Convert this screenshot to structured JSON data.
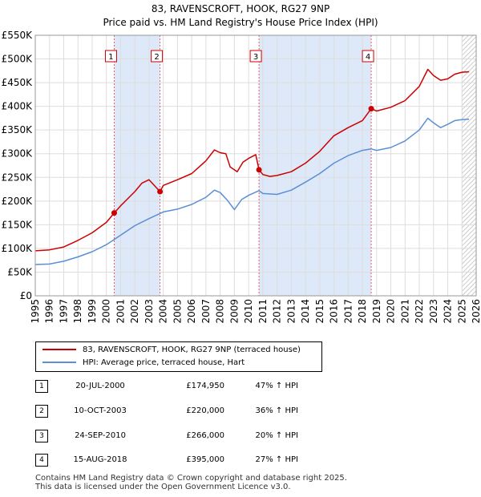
{
  "title": "83, RAVENSCROFT, HOOK, RG27 9NP",
  "subtitle": "Price paid vs. HM Land Registry's House Price Index (HPI)",
  "chart_data": {
    "type": "line",
    "title": "83, RAVENSCROFT, HOOK, RG27 9NP",
    "subtitle": "Price paid vs. HM Land Registry's House Price Index (HPI)",
    "xlabel": "",
    "ylabel": "",
    "xlim": [
      1995,
      2026
    ],
    "ylim": [
      0,
      550000
    ],
    "grid": true,
    "x_ticks": [
      1995,
      1996,
      1997,
      1998,
      1999,
      2000,
      2001,
      2002,
      2003,
      2004,
      2005,
      2006,
      2007,
      2008,
      2009,
      2010,
      2011,
      2012,
      2013,
      2014,
      2015,
      2016,
      2017,
      2018,
      2019,
      2020,
      2021,
      2022,
      2023,
      2024,
      2025,
      2026
    ],
    "x_tick_labels": [
      "1995",
      "1996",
      "1997",
      "1998",
      "1999",
      "2000",
      "2001",
      "2002",
      "2003",
      "2004",
      "2005",
      "2006",
      "2007",
      "2008",
      "2009",
      "2010",
      "2011",
      "2012",
      "2013",
      "2014",
      "2015",
      "2016",
      "2017",
      "2018",
      "2019",
      "2020",
      "2021",
      "2022",
      "2023",
      "2024",
      "2025",
      "2026"
    ],
    "y_ticks": [
      0,
      50000,
      100000,
      150000,
      200000,
      250000,
      300000,
      350000,
      400000,
      450000,
      500000,
      550000
    ],
    "y_tick_labels": [
      "£0",
      "£50K",
      "£100K",
      "£150K",
      "£200K",
      "£250K",
      "£300K",
      "£350K",
      "£400K",
      "£450K",
      "£500K",
      "£550K"
    ],
    "series": [
      {
        "name": "83, RAVENSCROFT, HOOK, RG27 9NP (terraced house)",
        "color": "#cc0000",
        "x": [
          1995.0,
          1996.0,
          1997.0,
          1998.0,
          1999.0,
          2000.0,
          2000.55,
          2001.0,
          2002.0,
          2002.5,
          2003.0,
          2003.77,
          2004.0,
          2005.0,
          2006.0,
          2007.0,
          2007.6,
          2008.0,
          2008.4,
          2008.7,
          2009.2,
          2009.6,
          2010.0,
          2010.5,
          2010.73,
          2011.0,
          2011.5,
          2012.0,
          2013.0,
          2014.0,
          2015.0,
          2016.0,
          2017.0,
          2018.0,
          2018.62,
          2019.0,
          2020.0,
          2021.0,
          2022.0,
          2022.6,
          2023.0,
          2023.5,
          2024.0,
          2024.5,
          2025.0,
          2025.5
        ],
        "values": [
          95000,
          97000,
          103000,
          117000,
          133000,
          155000,
          174950,
          190000,
          220000,
          238000,
          245000,
          220000,
          233000,
          245000,
          258000,
          285000,
          308000,
          302000,
          300000,
          272000,
          262000,
          282000,
          290000,
          298000,
          266000,
          256000,
          252000,
          254000,
          262000,
          280000,
          305000,
          338000,
          355000,
          370000,
          395000,
          390000,
          398000,
          412000,
          442000,
          478000,
          465000,
          455000,
          458000,
          468000,
          472000,
          473000
        ]
      },
      {
        "name": "HPI: Average price, terraced house, Hart",
        "color": "#5b8fd4",
        "x": [
          1995.0,
          1996.0,
          1997.0,
          1998.0,
          1999.0,
          2000.0,
          2001.0,
          2002.0,
          2003.0,
          2004.0,
          2005.0,
          2006.0,
          2007.0,
          2007.6,
          2008.0,
          2008.5,
          2009.0,
          2009.5,
          2010.0,
          2010.73,
          2011.0,
          2012.0,
          2013.0,
          2014.0,
          2015.0,
          2016.0,
          2017.0,
          2018.0,
          2018.62,
          2019.0,
          2020.0,
          2021.0,
          2022.0,
          2022.6,
          2023.0,
          2023.5,
          2024.0,
          2024.5,
          2025.0,
          2025.5
        ],
        "values": [
          66000,
          67000,
          73000,
          82000,
          93000,
          108000,
          128000,
          148000,
          163000,
          177000,
          183000,
          193000,
          208000,
          223000,
          218000,
          202000,
          182000,
          203000,
          212000,
          222000,
          216000,
          214000,
          223000,
          240000,
          258000,
          280000,
          296000,
          307000,
          310000,
          307000,
          313000,
          327000,
          350000,
          375000,
          365000,
          355000,
          362000,
          370000,
          372000,
          373000
        ]
      }
    ],
    "sales": [
      {
        "label": "1",
        "date": "20-JUL-2000",
        "x": 2000.55,
        "price": 174950,
        "price_text": "£174,950",
        "hpi_text": "47% ↑ HPI"
      },
      {
        "label": "2",
        "date": "10-OCT-2003",
        "x": 2003.77,
        "price": 220000,
        "price_text": "£220,000",
        "hpi_text": "36% ↑ HPI"
      },
      {
        "label": "3",
        "date": "24-SEP-2010",
        "x": 2010.73,
        "price": 266000,
        "price_text": "£266,000",
        "hpi_text": "20% ↑ HPI"
      },
      {
        "label": "4",
        "date": "15-AUG-2018",
        "x": 2018.62,
        "price": 395000,
        "price_text": "£395,000",
        "hpi_text": "27% ↑ HPI"
      }
    ],
    "shaded_ranges": [
      [
        2000.55,
        2003.77
      ],
      [
        2010.73,
        2018.62
      ]
    ],
    "hatched_from": 2025.0
  },
  "legend": {
    "property_label": "83, RAVENSCROFT, HOOK, RG27 9NP (terraced house)",
    "hpi_label": "HPI: Average price, terraced house, Hart"
  },
  "footer": {
    "line1": "Contains HM Land Registry data © Crown copyright and database right 2025.",
    "line2": "This data is licensed under the Open Government Licence v3.0."
  },
  "colors": {
    "property": "#cc0000",
    "hpi": "#5b8fd4",
    "shade": "#dde8f8",
    "grid": "#dddddd"
  }
}
